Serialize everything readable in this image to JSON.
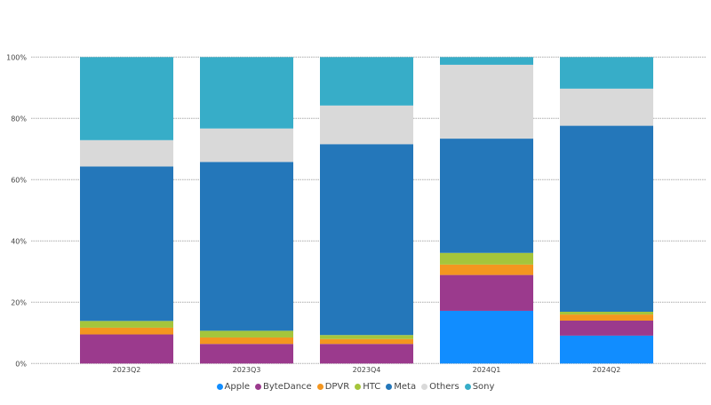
{
  "chart_data": {
    "type": "bar",
    "stacked": true,
    "normalized": true,
    "title": "",
    "xlabel": "",
    "ylabel": "",
    "ylim": [
      0,
      100
    ],
    "yticks": [
      "0%",
      "20%",
      "40%",
      "60%",
      "80%",
      "100%"
    ],
    "grid": true,
    "legend_position": "bottom",
    "categories": [
      "2023Q2",
      "2023Q3",
      "2023Q4",
      "2024Q1",
      "2024Q2"
    ],
    "series": [
      {
        "name": "Apple",
        "color": "#118dff",
        "values": [
          0,
          0,
          0,
          17.2,
          9.1
        ]
      },
      {
        "name": "ByteDance",
        "color": "#9b3a8d",
        "values": [
          9.5,
          6.4,
          6.4,
          11.7,
          4.9
        ]
      },
      {
        "name": "DPVR",
        "color": "#f4961f",
        "values": [
          2.2,
          2.1,
          1.6,
          3.4,
          2.0
        ]
      },
      {
        "name": "HTC",
        "color": "#a5c53b",
        "values": [
          2.2,
          2.2,
          1.3,
          3.8,
          0.9
        ]
      },
      {
        "name": "Meta",
        "color": "#2477ba",
        "values": [
          50.4,
          55.1,
          62.3,
          37.3,
          60.7
        ]
      },
      {
        "name": "Others",
        "color": "#d9d9d9",
        "values": [
          8.6,
          10.9,
          12.6,
          24.1,
          12.1
        ]
      },
      {
        "name": "Sony",
        "color": "#37adc8",
        "values": [
          27.1,
          23.3,
          15.8,
          2.5,
          10.3
        ]
      }
    ]
  }
}
